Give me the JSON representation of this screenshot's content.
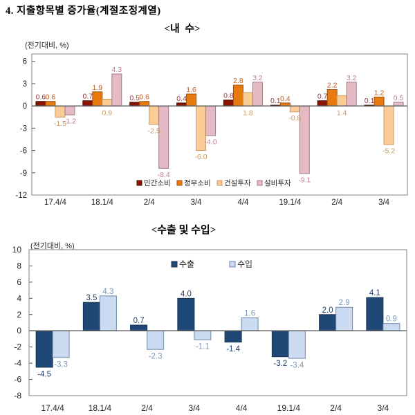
{
  "page": {
    "title": "4. 지출항목별 증가율(계절조정계열)"
  },
  "chart_data": [
    {
      "type": "bar",
      "title": "<내  수>",
      "unit_label": "(전기대비, %)",
      "categories": [
        "17.4/4",
        "18.1/4",
        "2/4",
        "3/4",
        "4/4",
        "19.1/4",
        "2/4",
        "3/4"
      ],
      "series": [
        {
          "name": "민간소비",
          "values": [
            0.6,
            0.7,
            0.5,
            0.4,
            0.8,
            0.1,
            0.7,
            0.1
          ],
          "color": "#8B1500",
          "border": "#4A0B00",
          "label_color": "#8E3A38"
        },
        {
          "name": "정부소비",
          "values": [
            0.6,
            1.9,
            0.6,
            1.6,
            2.8,
            0.4,
            2.2,
            1.2
          ],
          "color": "#E87B10",
          "border": "#A35208",
          "label_color": "#C2601C"
        },
        {
          "name": "건설투자",
          "values": [
            -1.5,
            0.9,
            -2.5,
            -6.0,
            1.8,
            -0.8,
            1.4,
            -5.2
          ],
          "color": "#FBCC96",
          "border": "#C89A5E",
          "label_color": "#C9985F"
        },
        {
          "name": "설비투자",
          "values": [
            -1.2,
            4.3,
            -8.4,
            -4.0,
            3.2,
            -9.1,
            3.2,
            0.5
          ],
          "color": "#E5BAC4",
          "border": "#A67A84",
          "label_color": "#BC7E8C"
        }
      ],
      "ylim": [
        -12,
        7
      ],
      "yticks": [
        6,
        3,
        0,
        -3,
        -6,
        -9,
        -12
      ],
      "grid": false,
      "legend_position": "bottom-inside"
    },
    {
      "type": "bar",
      "title": "<수출 및 수입>",
      "unit_label": "(전기대비, %)",
      "categories": [
        "17.4/4",
        "18.1/4",
        "2/4",
        "3/4",
        "4/4",
        "19.1/4",
        "2/4",
        "3/4"
      ],
      "series": [
        {
          "name": "수출",
          "values": [
            -4.5,
            3.5,
            0.7,
            4.0,
            -1.4,
            -3.2,
            2.0,
            4.1
          ],
          "color": "#1F4876",
          "border": "#15324F",
          "label_color": "#1F3B66"
        },
        {
          "name": "수입",
          "values": [
            -3.3,
            4.3,
            -2.3,
            -1.1,
            1.6,
            -3.4,
            2.9,
            0.9
          ],
          "color": "#CADAF0",
          "border": "#6F87A6",
          "label_color": "#7E96BA"
        }
      ],
      "ylim": [
        -8,
        10
      ],
      "yticks": [
        10,
        8,
        6,
        4,
        2,
        0,
        -2,
        -4,
        -6,
        -8
      ],
      "grid": false,
      "legend_position": "top-inside"
    }
  ]
}
